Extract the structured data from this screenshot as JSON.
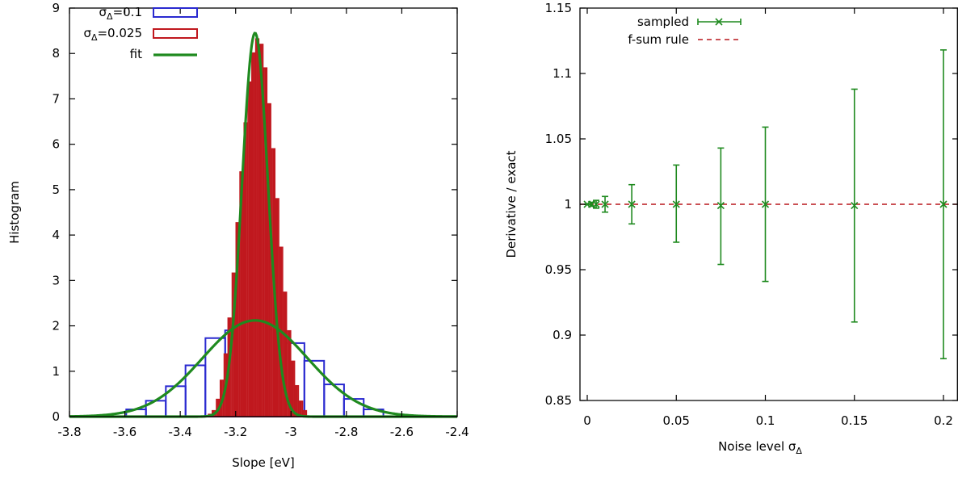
{
  "chart_data": [
    {
      "type": "bar",
      "xlabel": "Slope [eV]",
      "ylabel": "Histogram",
      "xlim": [
        -3.8,
        -2.4
      ],
      "ylim": [
        0,
        9
      ],
      "xticks": [
        "-3.8",
        "-3.6",
        "-3.4",
        "-3.2",
        "-3",
        "-2.8",
        "-2.6",
        "-2.4"
      ],
      "yticks": [
        "0",
        "1",
        "2",
        "3",
        "4",
        "5",
        "6",
        "7",
        "8",
        "9"
      ],
      "grid": false,
      "legend_position": "top-left",
      "series": [
        {
          "name": "σ_Δ=0.1",
          "label_main": "σ",
          "label_sub": "Δ",
          "label_tail": "=0.1",
          "kind": "histogram-outline",
          "color": "#2a2ad0",
          "bin_width": 0.0714,
          "bins": [
            {
              "x0": -3.595,
              "h": 0.16
            },
            {
              "x0": -3.524,
              "h": 0.35
            },
            {
              "x0": -3.452,
              "h": 0.67
            },
            {
              "x0": -3.381,
              "h": 1.13
            },
            {
              "x0": -3.309,
              "h": 1.73
            },
            {
              "x0": -3.238,
              "h": 1.9
            },
            {
              "x0": -3.166,
              "h": 2.12
            },
            {
              "x0": -3.095,
              "h": 1.92
            },
            {
              "x0": -3.023,
              "h": 1.62
            },
            {
              "x0": -2.952,
              "h": 1.23
            },
            {
              "x0": -2.88,
              "h": 0.71
            },
            {
              "x0": -2.809,
              "h": 0.39
            },
            {
              "x0": -2.738,
              "h": 0.16
            }
          ]
        },
        {
          "name": "σ_Δ=0.025",
          "label_main": "σ",
          "label_sub": "Δ",
          "label_tail": "=0.025",
          "kind": "histogram-filled",
          "color": "#c0181e",
          "bin_width": 0.0143,
          "bins": [
            {
              "x0": -3.3,
              "h": 0.05
            },
            {
              "x0": -3.286,
              "h": 0.13
            },
            {
              "x0": -3.271,
              "h": 0.38
            },
            {
              "x0": -3.257,
              "h": 0.8
            },
            {
              "x0": -3.243,
              "h": 1.38
            },
            {
              "x0": -3.229,
              "h": 2.17
            },
            {
              "x0": -3.214,
              "h": 3.16
            },
            {
              "x0": -3.2,
              "h": 4.27
            },
            {
              "x0": -3.186,
              "h": 5.39
            },
            {
              "x0": -3.171,
              "h": 6.47
            },
            {
              "x0": -3.157,
              "h": 7.37
            },
            {
              "x0": -3.143,
              "h": 8.01
            },
            {
              "x0": -3.129,
              "h": 8.32
            },
            {
              "x0": -3.114,
              "h": 8.2
            },
            {
              "x0": -3.1,
              "h": 7.68
            },
            {
              "x0": -3.086,
              "h": 6.89
            },
            {
              "x0": -3.071,
              "h": 5.9
            },
            {
              "x0": -3.057,
              "h": 4.8
            },
            {
              "x0": -3.043,
              "h": 3.73
            },
            {
              "x0": -3.029,
              "h": 2.74
            },
            {
              "x0": -3.014,
              "h": 1.89
            },
            {
              "x0": -3.0,
              "h": 1.22
            },
            {
              "x0": -2.986,
              "h": 0.68
            },
            {
              "x0": -2.971,
              "h": 0.34
            },
            {
              "x0": -2.957,
              "h": 0.13
            }
          ]
        },
        {
          "name": "fit",
          "kind": "gaussian-fit",
          "color": "#1f8a1f",
          "curves": [
            {
              "mean": -3.13,
              "amplitude": 2.12,
              "sigma": 0.19
            },
            {
              "mean": -3.13,
              "amplitude": 8.45,
              "sigma": 0.047
            }
          ]
        }
      ]
    },
    {
      "type": "scatter",
      "xlabel": "Noise level σ",
      "xlabel_main": "Noise level σ",
      "xlabel_sub": "Δ",
      "ylabel": "Derivative / exact",
      "xlim": [
        0,
        0.2
      ],
      "ylim": [
        0.85,
        1.15
      ],
      "xticks": [
        "0",
        "0.05",
        "0.1",
        "0.15",
        "0.2"
      ],
      "yticks": [
        "0.85",
        "0.9",
        "0.95",
        "1",
        "1.05",
        "1.1",
        "1.15"
      ],
      "grid": false,
      "legend_position": "top-left",
      "series": [
        {
          "name": "sampled",
          "kind": "errorbars",
          "color": "#1f8a1f",
          "points": [
            {
              "x": 0.0,
              "y": 1.0,
              "lo": 1.0,
              "hi": 1.0
            },
            {
              "x": 0.0025,
              "y": 1.0,
              "lo": 0.9985,
              "hi": 1.0015
            },
            {
              "x": 0.005,
              "y": 1.0,
              "lo": 0.997,
              "hi": 1.003
            },
            {
              "x": 0.01,
              "y": 1.0,
              "lo": 0.994,
              "hi": 1.006
            },
            {
              "x": 0.025,
              "y": 1.0,
              "lo": 0.985,
              "hi": 1.015
            },
            {
              "x": 0.05,
              "y": 1.0,
              "lo": 0.971,
              "hi": 1.03
            },
            {
              "x": 0.075,
              "y": 0.999,
              "lo": 0.954,
              "hi": 1.043
            },
            {
              "x": 0.1,
              "y": 1.0,
              "lo": 0.941,
              "hi": 1.059
            },
            {
              "x": 0.15,
              "y": 0.999,
              "lo": 0.91,
              "hi": 1.088
            },
            {
              "x": 0.2,
              "y": 1.0,
              "lo": 0.882,
              "hi": 1.118
            }
          ]
        },
        {
          "name": "f-sum rule",
          "kind": "dashed-line",
          "color": "#b8161c",
          "y": 1.0
        }
      ]
    }
  ]
}
